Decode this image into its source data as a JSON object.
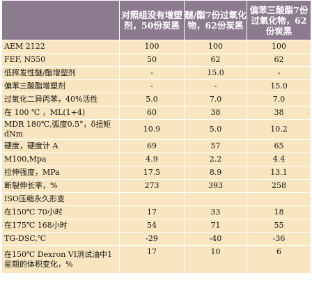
{
  "table": {
    "headers": [
      "",
      "对照组没有增塑剂，50份炭黑",
      "醚/酯7份过氧化物，62份炭黑",
      "偏苯三酸酯7份过氧化物，62份炭黑"
    ],
    "rows": [
      {
        "label": "AEM 2122",
        "values": [
          "100",
          "100",
          "100"
        ]
      },
      {
        "label": "FEF, N550",
        "values": [
          "50",
          "62",
          "62"
        ]
      },
      {
        "label": "低挥发性醚/酯增塑剂",
        "values": [
          "-",
          "15.0",
          "-"
        ]
      },
      {
        "label": "偏苯三酸酯增塑剂",
        "values": [
          "-",
          "-",
          "15.0"
        ]
      },
      {
        "label": "过氧化二异丙苯，40%活性",
        "values": [
          "5.0",
          "7.0",
          "7.0"
        ]
      },
      {
        "label": "在 100 ℃ ，ML(1+4)",
        "values": [
          "60",
          "38",
          "38"
        ]
      },
      {
        "label": "MDR 180℃,弧度0.5°，δ扭矩dNm",
        "values": [
          "10.9",
          "5.0",
          "10.2"
        ]
      },
      {
        "label": "硬度，硬度计 A",
        "values": [
          "69",
          "57",
          "65"
        ]
      },
      {
        "label": "M100,Mpa",
        "values": [
          "4.9",
          "2.2",
          "4.4"
        ]
      },
      {
        "label": "拉伸强度，MPa",
        "values": [
          "17.5",
          "8.9",
          "13.1"
        ]
      },
      {
        "label": "断裂伸长率，%",
        "values": [
          "273",
          "393",
          "258"
        ]
      },
      {
        "label": "ISO压缩永久形变",
        "values": [
          "",
          "",
          ""
        ]
      },
      {
        "label": "在150℃ 70小时",
        "values": [
          "17",
          "33",
          "18"
        ]
      },
      {
        "label": "在175℃ 168小时",
        "values": [
          "54",
          "71",
          "55"
        ]
      },
      {
        "label": "TG-DSC,℃",
        "values": [
          "-29",
          "-40",
          "-36"
        ]
      },
      {
        "label": "在150℃ Dexron VI测试油中1星期的体积变化，%",
        "values": [
          "17",
          "10",
          "6"
        ]
      }
    ]
  }
}
